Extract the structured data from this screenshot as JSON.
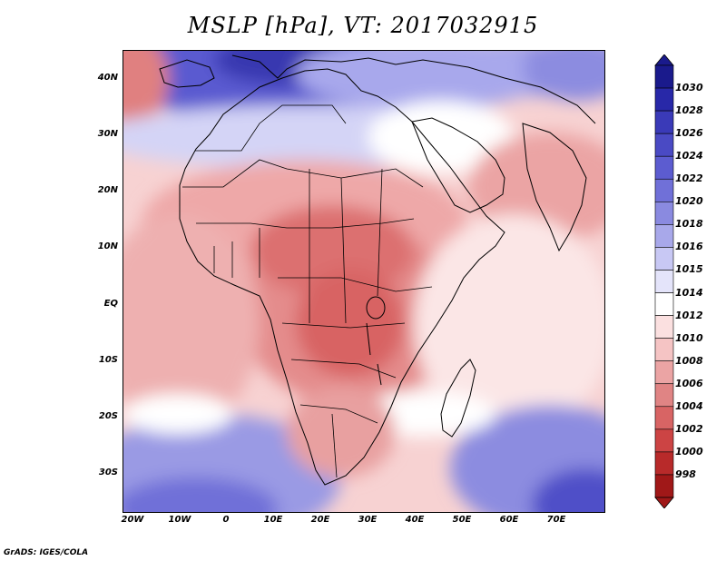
{
  "title": "MSLP [hPa], VT: 2017032915",
  "footer": "GrADS: IGES/COLA",
  "axes": {
    "lat_ticks": [
      "40N",
      "30N",
      "20N",
      "10N",
      "EQ",
      "10S",
      "20S",
      "30S"
    ],
    "lon_ticks": [
      "20W",
      "10W",
      "0",
      "10E",
      "20E",
      "30E",
      "40E",
      "50E",
      "60E",
      "70E"
    ],
    "lat_range": [
      -37,
      45
    ],
    "lon_range": [
      -22,
      80
    ]
  },
  "colorbar": {
    "labels": [
      "1030",
      "1028",
      "1026",
      "1024",
      "1022",
      "1020",
      "1018",
      "1016",
      "1015",
      "1014",
      "1012",
      "1010",
      "1008",
      "1006",
      "1004",
      "1002",
      "1000",
      "998"
    ],
    "colors": [
      "#1a1a8c",
      "#2828a8",
      "#3a3ab8",
      "#4a4ac4",
      "#5c5cd0",
      "#7070d8",
      "#8a8ae0",
      "#a8a8ea",
      "#c8c8f4",
      "#e4e4fa",
      "#ffffff",
      "#fbe0e0",
      "#f5c4c4",
      "#eba4a4",
      "#e08484",
      "#d86464",
      "#cc4444",
      "#b82a2a",
      "#a01818"
    ]
  },
  "map": {
    "ocean_background": "#f5cccc",
    "features": [
      {
        "name": "high-pressure-europe",
        "color": "#5050c8"
      },
      {
        "name": "high-pressure-south-atlantic",
        "color": "#7878d8"
      },
      {
        "name": "high-pressure-south-indian",
        "color": "#6868d0"
      },
      {
        "name": "low-pressure-central-africa",
        "color": "#d86464"
      },
      {
        "name": "low-pressure-sahel",
        "color": "#e08484"
      }
    ]
  }
}
